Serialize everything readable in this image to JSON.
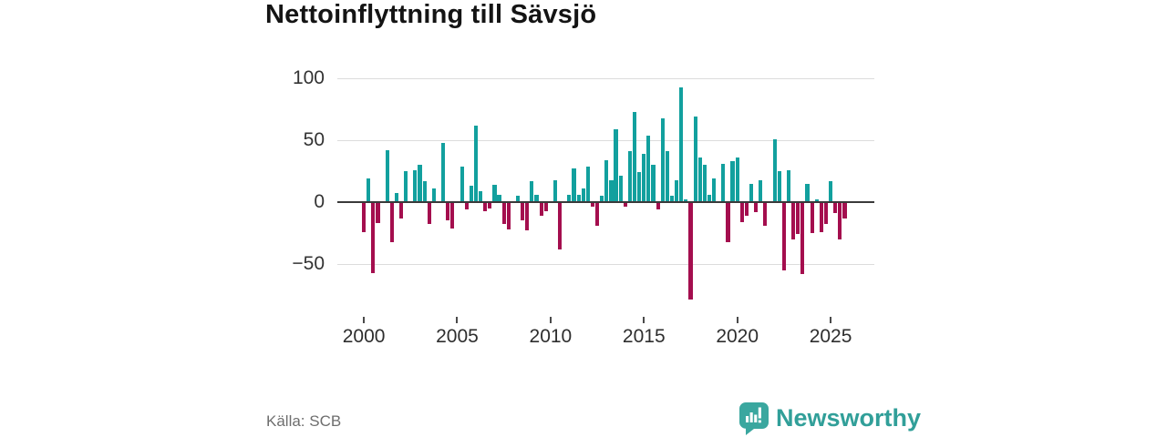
{
  "header": {
    "title": "Nettoinflyttning till Sävsjö"
  },
  "footer": {
    "source": "Källa: SCB",
    "brand": "Newsworthy"
  },
  "colors": {
    "positive_bar": "#12a09e",
    "negative_bar": "#a40e4e",
    "zero_axis": "#3a3a3a",
    "gridline": "#dcdcdc",
    "brand_teal": "#3aa79f",
    "source_text": "#6e6e6e"
  },
  "chart_data": {
    "type": "bar",
    "title": "Nettoinflyttning till Sävsjö",
    "xlabel": "",
    "ylabel": "",
    "frequency": "quarterly",
    "x_range": [
      "2000 Q1",
      "2025 Q4"
    ],
    "quarters": [
      "Q1",
      "Q2",
      "Q3",
      "Q4"
    ],
    "x_ticks": [
      "2000",
      "2005",
      "2010",
      "2015",
      "2020",
      "2025"
    ],
    "y_ticks": [
      100,
      50,
      0,
      -50
    ],
    "y_tick_labels": [
      "100",
      "50",
      "0",
      "−50"
    ],
    "ylim": [
      -90,
      104
    ],
    "grid": true,
    "legend": "none",
    "positive_color": "#12a09e",
    "negative_color": "#a40e4e",
    "values_by_year": {
      "2000": [
        -24,
        19,
        -57,
        -17
      ],
      "2001": [
        0,
        42,
        -32,
        7
      ],
      "2002": [
        -13,
        25,
        0,
        26
      ],
      "2003": [
        30,
        17,
        -18,
        11
      ],
      "2004": [
        0,
        48,
        -15,
        -21
      ],
      "2005": [
        0,
        29,
        -6,
        13
      ],
      "2006": [
        62,
        9,
        -7,
        -5
      ],
      "2007": [
        14,
        6,
        -18,
        -22
      ],
      "2008": [
        0,
        5,
        -15,
        -23
      ],
      "2009": [
        17,
        6,
        -11,
        -7
      ],
      "2010": [
        0,
        18,
        -38,
        0
      ],
      "2011": [
        6,
        27,
        6,
        11
      ],
      "2012": [
        29,
        -4,
        -19,
        5
      ],
      "2013": [
        34,
        18,
        59,
        21
      ],
      "2014": [
        -4,
        41,
        73,
        24
      ],
      "2015": [
        39,
        54,
        30,
        -6
      ],
      "2016": [
        68,
        41,
        5,
        18
      ],
      "2017": [
        93,
        2,
        -79,
        69
      ],
      "2018": [
        36,
        30,
        6,
        19
      ],
      "2019": [
        0,
        31,
        -32,
        33
      ],
      "2020": [
        36,
        -16,
        -11,
        15
      ],
      "2021": [
        -8,
        18,
        -19,
        0
      ],
      "2022": [
        51,
        25,
        -55,
        26
      ],
      "2023": [
        -30,
        -26,
        -58,
        15
      ],
      "2024": [
        -25,
        2,
        -24,
        -18
      ],
      "2025": [
        17,
        -9,
        -30,
        -13
      ]
    }
  }
}
